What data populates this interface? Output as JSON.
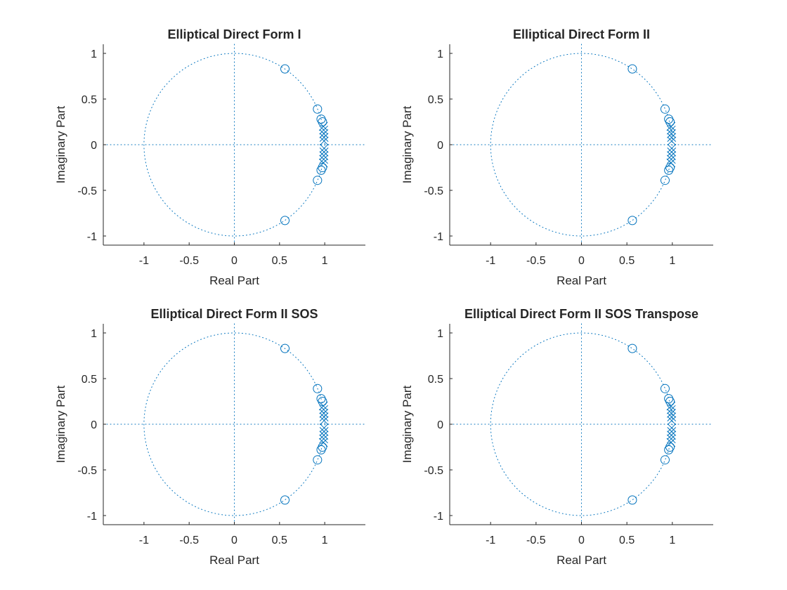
{
  "figure": {
    "background": "#ffffff",
    "marker_color": "#0072BD",
    "axis_color": "#262626"
  },
  "chart_data": [
    {
      "type": "scatter",
      "subtype": "pole-zero",
      "title": "Elliptical Direct Form I",
      "xlabel": "Real Part",
      "ylabel": "Imaginary Part",
      "xlim": [
        -1.45,
        1.45
      ],
      "ylim": [
        -1.1,
        1.1
      ],
      "xticks": [
        -1,
        -0.5,
        0,
        0.5,
        1
      ],
      "xtick_labels": [
        "-1",
        "-0.5",
        "0",
        "0.5",
        "1"
      ],
      "yticks": [
        -1,
        -0.5,
        0,
        0.5,
        1
      ],
      "ytick_labels": [
        "-1",
        "-0.5",
        "0",
        "0.5",
        "1"
      ],
      "unit_circle": true,
      "zeros": [
        [
          0.56,
          0.83
        ],
        [
          0.56,
          -0.83
        ],
        [
          0.92,
          0.39
        ],
        [
          0.92,
          -0.39
        ],
        [
          0.96,
          0.28
        ],
        [
          0.96,
          -0.28
        ],
        [
          0.975,
          0.25
        ],
        [
          0.975,
          -0.25
        ]
      ],
      "poles": [
        [
          0.985,
          0.2
        ],
        [
          0.985,
          -0.2
        ],
        [
          0.988,
          0.16
        ],
        [
          0.988,
          -0.16
        ],
        [
          0.99,
          0.12
        ],
        [
          0.99,
          -0.12
        ],
        [
          0.992,
          0.08
        ],
        [
          0.992,
          -0.08
        ],
        [
          0.993,
          0.04
        ],
        [
          0.993,
          -0.04
        ]
      ]
    },
    {
      "type": "scatter",
      "subtype": "pole-zero",
      "title": "Elliptical Direct Form II",
      "xlabel": "Real Part",
      "ylabel": "Imaginary Part",
      "xlim": [
        -1.45,
        1.45
      ],
      "ylim": [
        -1.1,
        1.1
      ],
      "xticks": [
        -1,
        -0.5,
        0,
        0.5,
        1
      ],
      "xtick_labels": [
        "-1",
        "-0.5",
        "0",
        "0.5",
        "1"
      ],
      "yticks": [
        -1,
        -0.5,
        0,
        0.5,
        1
      ],
      "ytick_labels": [
        "-1",
        "-0.5",
        "0",
        "0.5",
        "1"
      ],
      "unit_circle": true,
      "zeros": [
        [
          0.56,
          0.83
        ],
        [
          0.56,
          -0.83
        ],
        [
          0.92,
          0.39
        ],
        [
          0.92,
          -0.39
        ],
        [
          0.96,
          0.28
        ],
        [
          0.96,
          -0.28
        ],
        [
          0.975,
          0.25
        ],
        [
          0.975,
          -0.25
        ]
      ],
      "poles": [
        [
          0.985,
          0.2
        ],
        [
          0.985,
          -0.2
        ],
        [
          0.988,
          0.16
        ],
        [
          0.988,
          -0.16
        ],
        [
          0.99,
          0.12
        ],
        [
          0.99,
          -0.12
        ],
        [
          0.992,
          0.08
        ],
        [
          0.992,
          -0.08
        ],
        [
          0.993,
          0.04
        ],
        [
          0.993,
          -0.04
        ]
      ]
    },
    {
      "type": "scatter",
      "subtype": "pole-zero",
      "title": "Elliptical Direct Form II SOS",
      "xlabel": "Real Part",
      "ylabel": "Imaginary Part",
      "xlim": [
        -1.45,
        1.45
      ],
      "ylim": [
        -1.1,
        1.1
      ],
      "xticks": [
        -1,
        -0.5,
        0,
        0.5,
        1
      ],
      "xtick_labels": [
        "-1",
        "-0.5",
        "0",
        "0.5",
        "1"
      ],
      "yticks": [
        -1,
        -0.5,
        0,
        0.5,
        1
      ],
      "ytick_labels": [
        "-1",
        "-0.5",
        "0",
        "0.5",
        "1"
      ],
      "unit_circle": true,
      "zeros": [
        [
          0.56,
          0.83
        ],
        [
          0.56,
          -0.83
        ],
        [
          0.92,
          0.39
        ],
        [
          0.92,
          -0.39
        ],
        [
          0.96,
          0.28
        ],
        [
          0.96,
          -0.28
        ],
        [
          0.975,
          0.25
        ],
        [
          0.975,
          -0.25
        ]
      ],
      "poles": [
        [
          0.985,
          0.2
        ],
        [
          0.985,
          -0.2
        ],
        [
          0.988,
          0.16
        ],
        [
          0.988,
          -0.16
        ],
        [
          0.99,
          0.12
        ],
        [
          0.99,
          -0.12
        ],
        [
          0.992,
          0.08
        ],
        [
          0.992,
          -0.08
        ],
        [
          0.993,
          0.04
        ],
        [
          0.993,
          -0.04
        ]
      ]
    },
    {
      "type": "scatter",
      "subtype": "pole-zero",
      "title": "Elliptical Direct Form II SOS Transpose",
      "xlabel": "Real Part",
      "ylabel": "Imaginary Part",
      "xlim": [
        -1.45,
        1.45
      ],
      "ylim": [
        -1.1,
        1.1
      ],
      "xticks": [
        -1,
        -0.5,
        0,
        0.5,
        1
      ],
      "xtick_labels": [
        "-1",
        "-0.5",
        "0",
        "0.5",
        "1"
      ],
      "yticks": [
        -1,
        -0.5,
        0,
        0.5,
        1
      ],
      "ytick_labels": [
        "-1",
        "-0.5",
        "0",
        "0.5",
        "1"
      ],
      "unit_circle": true,
      "zeros": [
        [
          0.56,
          0.83
        ],
        [
          0.56,
          -0.83
        ],
        [
          0.92,
          0.39
        ],
        [
          0.92,
          -0.39
        ],
        [
          0.96,
          0.28
        ],
        [
          0.96,
          -0.28
        ],
        [
          0.975,
          0.25
        ],
        [
          0.975,
          -0.25
        ]
      ],
      "poles": [
        [
          0.985,
          0.2
        ],
        [
          0.985,
          -0.2
        ],
        [
          0.988,
          0.16
        ],
        [
          0.988,
          -0.16
        ],
        [
          0.99,
          0.12
        ],
        [
          0.99,
          -0.12
        ],
        [
          0.992,
          0.08
        ],
        [
          0.992,
          -0.08
        ],
        [
          0.993,
          0.04
        ],
        [
          0.993,
          -0.04
        ]
      ]
    }
  ]
}
